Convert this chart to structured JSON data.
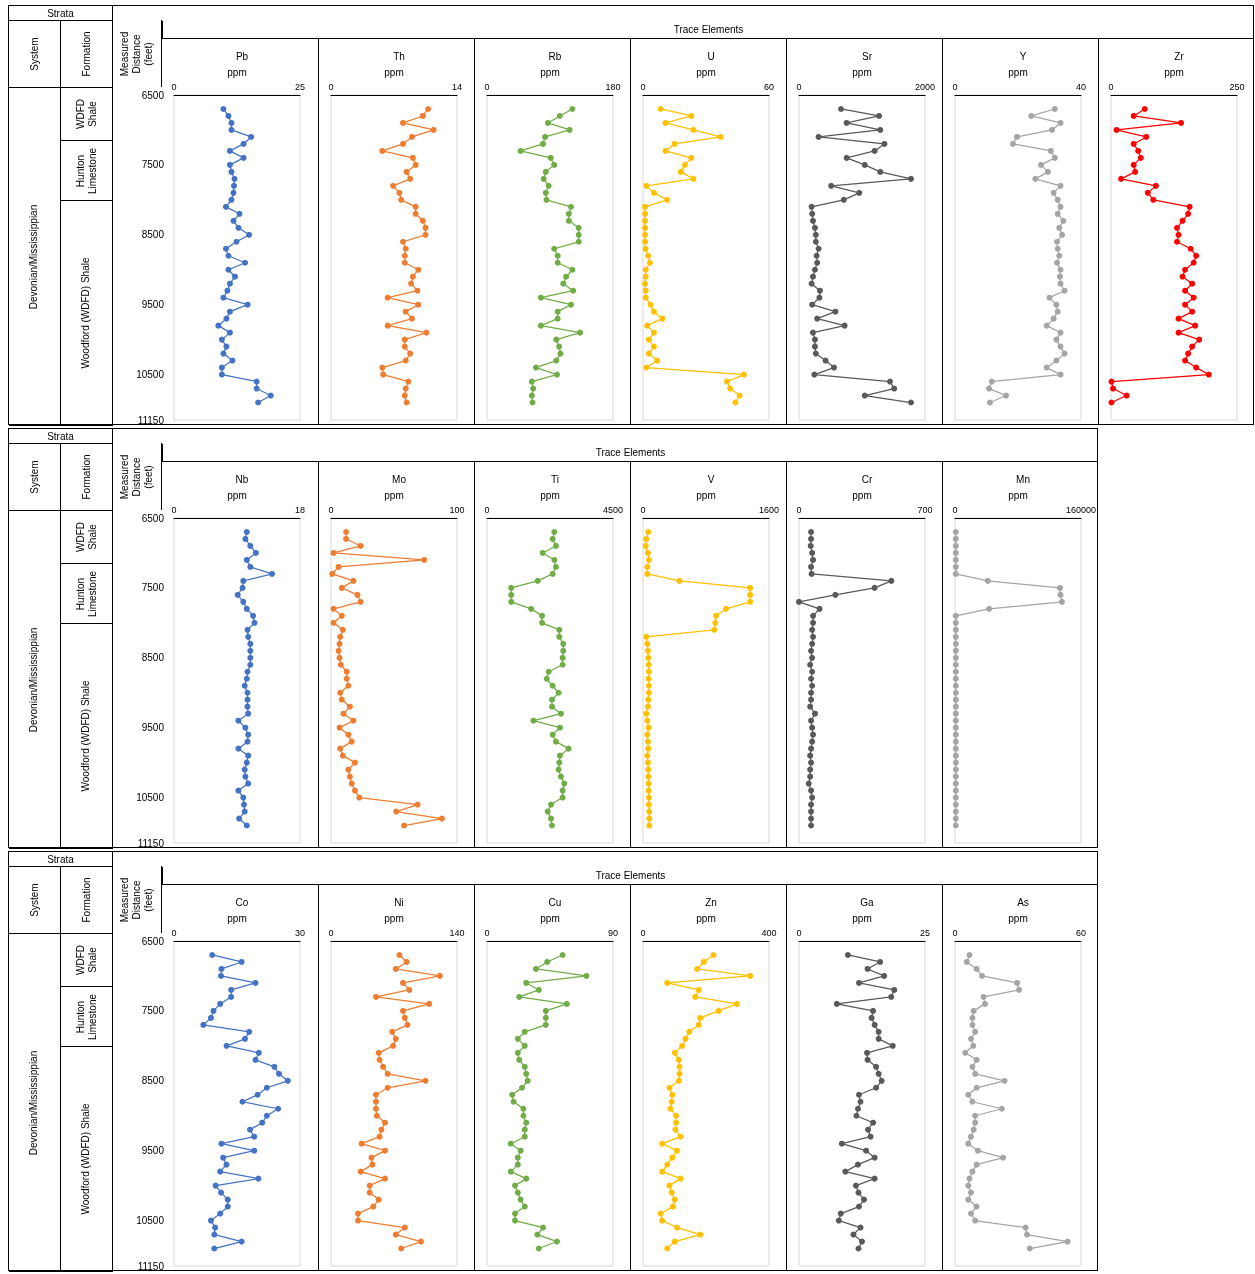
{
  "chart_data": [
    {
      "type": "other",
      "title": "Strata",
      "annotations": [
        "System",
        "Formation",
        "Devonian/Mississippian",
        "WDFD Shale",
        "Hunton Limestone",
        "Woodford (WDFD) Shale",
        "Trace Elements"
      ]
    },
    {
      "type": "line",
      "title": "Pb",
      "xlabel": "ppm",
      "ylabel": "Measured Distance (feet)",
      "color": "#4472c4",
      "marker": "circle",
      "line_style": "solid",
      "xlim": [
        0,
        25
      ],
      "xticks": [
        0,
        25
      ],
      "ylim": [
        11150,
        6500
      ],
      "yticks": [
        6500,
        7500,
        8500,
        9500,
        10500,
        11150
      ],
      "x": [
        9.8,
        10.8,
        11.4,
        11.4,
        15.3,
        13.8,
        11.1,
        13.8,
        11.1,
        11.4,
        12,
        11.9,
        11.8,
        11.4,
        10.3,
        13,
        11.8,
        12.8,
        14.9,
        12.4,
        10.3,
        10.8,
        14.1,
        10.8,
        12.1,
        11.1,
        10.6,
        9.8,
        14.6,
        11.1,
        10.4,
        8.8,
        11.1,
        9.5,
        10.4,
        9.8,
        11.6,
        9.5,
        9.5,
        16.4,
        16.4,
        19.2,
        16.7
      ],
      "values": [
        6700,
        6800,
        6900,
        7000,
        7100,
        7200,
        7300,
        7400,
        7500,
        7600,
        7700,
        7800,
        7900,
        8000,
        8100,
        8200,
        8300,
        8400,
        8500,
        8600,
        8700,
        8800,
        8900,
        9000,
        9100,
        9200,
        9300,
        9400,
        9500,
        9600,
        9700,
        9800,
        9900,
        10000,
        10100,
        10200,
        10300,
        10400,
        10500,
        10600,
        10700,
        10800,
        10900
      ]
    },
    {
      "type": "line",
      "title": "Th",
      "xlabel": "ppm",
      "tick_labels": "x",
      "color": "#ed7d31",
      "marker": "circle",
      "line_style": "solid",
      "xlim": [
        0,
        14
      ],
      "xticks": [
        0,
        14
      ],
      "ylim": [
        11150,
        6500
      ],
      "yticks": [
        6500,
        7500,
        8500,
        9500,
        10500,
        11150
      ],
      "x": [
        10.8,
        10.2,
        8.0,
        11.4,
        9.0,
        8.0,
        5.7,
        9.1,
        9.4,
        8.4,
        8.8,
        6.9,
        7.6,
        7.8,
        9.4,
        9.4,
        10.2,
        10.5,
        10.5,
        8.0,
        8.3,
        8.2,
        8.2,
        9.7,
        9.1,
        8.9,
        9.6,
        6.3,
        9.7,
        8.3,
        9.0,
        6.3,
        10.6,
        8.2,
        8.2,
        8.8,
        8.3,
        5.7,
        5.8,
        8.6,
        8.3,
        8.2,
        8.4
      ],
      "values": [
        6700,
        6800,
        6900,
        7000,
        7100,
        7200,
        7300,
        7400,
        7500,
        7600,
        7700,
        7800,
        7900,
        8000,
        8100,
        8200,
        8300,
        8400,
        8500,
        8600,
        8700,
        8800,
        8900,
        9000,
        9100,
        9200,
        9300,
        9400,
        9500,
        9600,
        9700,
        9800,
        9900,
        10000,
        10100,
        10200,
        10300,
        10400,
        10500,
        10600,
        10700,
        10800,
        10900
      ]
    },
    {
      "type": "line",
      "title": "Rb",
      "xlabel": "ppm",
      "tick_labels": "x",
      "color": "#70ad47",
      "marker": "circle",
      "line_style": "solid",
      "xlim": [
        0,
        180
      ],
      "xticks": [
        0,
        180
      ],
      "ylim": [
        11150,
        6500
      ],
      "yticks": [
        6500,
        7500,
        8500,
        9500,
        10500,
        11150
      ],
      "x": [
        122,
        104,
        87,
        118,
        83,
        80,
        48,
        91,
        96,
        84,
        81,
        88,
        84,
        85,
        120,
        117,
        117,
        131,
        131,
        131,
        96,
        101,
        101,
        122,
        113,
        109,
        123,
        77,
        120,
        101,
        101,
        77,
        133,
        99,
        103,
        105,
        99,
        70,
        100,
        64,
        66,
        64,
        65
      ],
      "values": [
        6700,
        6800,
        6900,
        7000,
        7100,
        7200,
        7300,
        7400,
        7500,
        7600,
        7700,
        7800,
        7900,
        8000,
        8100,
        8200,
        8300,
        8400,
        8500,
        8600,
        8700,
        8800,
        8900,
        9000,
        9100,
        9200,
        9300,
        9400,
        9500,
        9600,
        9700,
        9800,
        9900,
        10000,
        10100,
        10200,
        10300,
        10400,
        10500,
        10600,
        10700,
        10800,
        10900
      ]
    },
    {
      "type": "line",
      "title": "U",
      "xlabel": "ppm",
      "tick_labels": "x",
      "color": "#ffc000",
      "marker": "circle",
      "line_style": "solid",
      "xlim": [
        0,
        60
      ],
      "xticks": [
        0,
        60
      ],
      "ylim": [
        11150,
        6500
      ],
      "yticks": [
        6500,
        7500,
        8500,
        9500,
        10500,
        11150
      ],
      "x": [
        8.4,
        23,
        10.7,
        24,
        37,
        15,
        10.7,
        23,
        20,
        18,
        24,
        1.6,
        5.2,
        11.5,
        1,
        1,
        1,
        1,
        1,
        1,
        1.2,
        2.5,
        3.3,
        1.3,
        1.3,
        1,
        1.3,
        1.3,
        3.6,
        5.2,
        9.2,
        2,
        5.2,
        2.8,
        5.2,
        2.8,
        6.8,
        1.6,
        48,
        40,
        41.5,
        46,
        44
      ],
      "values": [
        6700,
        6800,
        6900,
        7000,
        7100,
        7200,
        7300,
        7400,
        7500,
        7600,
        7700,
        7800,
        7900,
        8000,
        8100,
        8200,
        8300,
        8400,
        8500,
        8600,
        8700,
        8800,
        8900,
        9000,
        9100,
        9200,
        9300,
        9400,
        9500,
        9600,
        9700,
        9800,
        9900,
        10000,
        10100,
        10200,
        10300,
        10400,
        10500,
        10600,
        10700,
        10800,
        10900
      ]
    },
    {
      "type": "line",
      "title": "Sr",
      "xlabel": "ppm",
      "tick_labels": "x",
      "color": "#595959",
      "marker": "circle",
      "line_style": "solid",
      "xlim": [
        0,
        2000
      ],
      "xticks": [
        0,
        2000
      ],
      "ylim": [
        11150,
        6500
      ],
      "yticks": [
        6500,
        7500,
        8500,
        9500,
        10500,
        11150
      ],
      "x": [
        667,
        1270,
        756,
        1290,
        311,
        1356,
        1200,
        756,
        1044,
        1290,
        1778,
        511,
        956,
        711,
        200,
        209,
        222,
        253,
        267,
        267,
        311,
        280,
        289,
        253,
        222,
        200,
        333,
        324,
        209,
        578,
        289,
        724,
        222,
        253,
        253,
        267,
        422,
        556,
        244,
        1444,
        1511,
        1044,
        1778
      ],
      "values": [
        6700,
        6800,
        6900,
        7000,
        7100,
        7200,
        7300,
        7400,
        7500,
        7600,
        7700,
        7800,
        7900,
        8000,
        8100,
        8200,
        8300,
        8400,
        8500,
        8600,
        8700,
        8800,
        8900,
        9000,
        9100,
        9200,
        9300,
        9400,
        9500,
        9600,
        9700,
        9800,
        9900,
        10000,
        10100,
        10200,
        10300,
        10400,
        10500,
        10600,
        10700,
        10800,
        10900
      ]
    },
    {
      "type": "line",
      "title": "Y",
      "xlabel": "ppm",
      "tick_labels": "x",
      "color": "#a5a5a5",
      "marker": "circle",
      "line_style": "solid",
      "xlim": [
        0,
        40
      ],
      "xticks": [
        0,
        40
      ],
      "ylim": [
        11150,
        6500
      ],
      "yticks": [
        6500,
        7500,
        8500,
        9500,
        10500,
        11150
      ],
      "x": [
        31.7,
        24.2,
        33.5,
        30.8,
        19.7,
        18.4,
        30.4,
        31.7,
        27.3,
        29.5,
        25.5,
        33.5,
        31.3,
        32.6,
        33.5,
        32.6,
        34.4,
        33.1,
        34,
        32.4,
        32.6,
        33.1,
        32.4,
        33.5,
        33.3,
        33.5,
        34.8,
        30,
        32.2,
        32.6,
        31.3,
        29.1,
        33.5,
        32.2,
        33.5,
        34.8,
        32.2,
        29.1,
        33.5,
        11.7,
        10.8,
        16.2,
        11.1
      ],
      "values": [
        6700,
        6800,
        6900,
        7000,
        7100,
        7200,
        7300,
        7400,
        7500,
        7600,
        7700,
        7800,
        7900,
        8000,
        8100,
        8200,
        8300,
        8400,
        8500,
        8600,
        8700,
        8800,
        8900,
        9000,
        9100,
        9200,
        9300,
        9400,
        9500,
        9600,
        9700,
        9800,
        9900,
        10000,
        10100,
        10200,
        10300,
        10400,
        10500,
        10600,
        10700,
        10800,
        10900
      ]
    },
    {
      "type": "line",
      "title": "Zr",
      "xlabel": "ppm",
      "tick_labels": "x",
      "color": "#ff0000",
      "marker": "circle",
      "line_style": "solid",
      "xlim": [
        0,
        250
      ],
      "xticks": [
        0,
        250
      ],
      "ylim": [
        11150,
        6500
      ],
      "yticks": [
        6500,
        7500,
        8500,
        9500,
        10500,
        11150
      ],
      "x": [
        67,
        45,
        139,
        11,
        70,
        45,
        54,
        59,
        45,
        48,
        20,
        89,
        73,
        84,
        156,
        153,
        142,
        131,
        134,
        131,
        158,
        169,
        164,
        147,
        142,
        161,
        147,
        164,
        147,
        161,
        134,
        167,
        134,
        175,
        161,
        153,
        147,
        169,
        194,
        1,
        4,
        31,
        1
      ],
      "values": [
        6700,
        6800,
        6900,
        7000,
        7100,
        7200,
        7300,
        7400,
        7500,
        7600,
        7700,
        7800,
        7900,
        8000,
        8100,
        8200,
        8300,
        8400,
        8500,
        8600,
        8700,
        8800,
        8900,
        9000,
        9100,
        9200,
        9300,
        9400,
        9500,
        9600,
        9700,
        9800,
        9900,
        10000,
        10100,
        10200,
        10300,
        10400,
        10500,
        10600,
        10700,
        10800,
        10900
      ]
    },
    {
      "type": "other",
      "title": "Strata",
      "annotations": [
        "System",
        "Formation",
        "Devonian/Mississippian",
        "WDFD Shale",
        "Hunton Limestone",
        "Woodford (WDFD) Shale",
        "Trace Elements"
      ]
    },
    {
      "type": "line",
      "title": "Nb",
      "xlabel": "ppm",
      "ylabel": "Measured Distance (feet)",
      "color": "#4472c4",
      "marker": "circle",
      "line_style": "solid",
      "xlim": [
        0,
        18
      ],
      "xticks": [
        0,
        18
      ],
      "ylim": [
        11150,
        6500
      ],
      "yticks": [
        6500,
        7500,
        8500,
        9500,
        10500,
        11150
      ],
      "x": [
        10.4,
        10.2,
        10.9,
        11.7,
        10.4,
        10.9,
        14,
        9.9,
        9.8,
        9.1,
        9.9,
        10.4,
        11.3,
        11.5,
        10.5,
        10.6,
        10.9,
        10.9,
        10.9,
        10.9,
        10.5,
        10.4,
        10.1,
        10.5,
        10.5,
        10.5,
        10.6,
        9.2,
        10.2,
        10.6,
        10.5,
        9.2,
        10.6,
        10.4,
        10.1,
        10.2,
        10.6,
        9.2,
        9.9,
        10,
        10.1,
        9.3,
        10.4
      ],
      "values": [
        6700,
        6800,
        6900,
        7000,
        7100,
        7200,
        7300,
        7400,
        7500,
        7600,
        7700,
        7800,
        7900,
        8000,
        8100,
        8200,
        8300,
        8400,
        8500,
        8600,
        8700,
        8800,
        8900,
        9000,
        9100,
        9200,
        9300,
        9400,
        9500,
        9600,
        9700,
        9800,
        9900,
        10000,
        10100,
        10200,
        10300,
        10400,
        10500,
        10600,
        10700,
        10800,
        10900
      ]
    },
    {
      "type": "line",
      "title": "Mo",
      "xlabel": "ppm",
      "tick_labels": "x",
      "color": "#ed7d31",
      "marker": "circle",
      "line_style": "solid",
      "xlim": [
        0,
        100
      ],
      "xticks": [
        0,
        100
      ],
      "ylim": [
        11150,
        6500
      ],
      "yticks": [
        6500,
        7500,
        8500,
        9500,
        10500,
        11150
      ],
      "x": [
        12,
        12,
        23.5,
        2,
        74,
        6,
        1,
        17.8,
        8.6,
        21,
        23.5,
        2,
        8.6,
        2,
        9.4,
        7.3,
        6.8,
        6,
        6.8,
        7.8,
        12.5,
        12.5,
        13.8,
        7.3,
        8.6,
        15,
        9.9,
        17.8,
        6.8,
        13.8,
        16.4,
        7.3,
        9.4,
        19,
        13.8,
        15,
        16.4,
        19,
        22.5,
        68.7,
        51.7,
        88,
        58
      ],
      "values": [
        6700,
        6800,
        6900,
        7000,
        7100,
        7200,
        7300,
        7400,
        7500,
        7600,
        7700,
        7800,
        7900,
        8000,
        8100,
        8200,
        8300,
        8400,
        8500,
        8600,
        8700,
        8800,
        8900,
        9000,
        9100,
        9200,
        9300,
        9400,
        9500,
        9600,
        9700,
        9800,
        9900,
        10000,
        10100,
        10200,
        10300,
        10400,
        10500,
        10600,
        10700,
        10800,
        10900
      ]
    },
    {
      "type": "line",
      "title": "Ti",
      "xlabel": "ppm",
      "tick_labels": "x",
      "color": "#70ad47",
      "marker": "circle",
      "line_style": "solid",
      "xlim": [
        0,
        4500
      ],
      "xticks": [
        0,
        4500
      ],
      "ylim": [
        11150,
        6500
      ],
      "yticks": [
        6500,
        7500,
        8500,
        9500,
        10500,
        11150
      ],
      "x": [
        2404,
        2345,
        2463,
        1989,
        2404,
        2463,
        2345,
        1812,
        864,
        864,
        864,
        1575,
        1966,
        1966,
        2582,
        2582,
        2724,
        2724,
        2700,
        2700,
        2203,
        2132,
        2345,
        2558,
        2321,
        2321,
        2641,
        1658,
        2605,
        2345,
        2463,
        2913,
        2605,
        2582,
        2558,
        2641,
        2759,
        2700,
        2700,
        2286,
        2167,
        2286,
        2321
      ],
      "values": [
        6700,
        6800,
        6900,
        7000,
        7100,
        7200,
        7300,
        7400,
        7500,
        7600,
        7700,
        7800,
        7900,
        8000,
        8100,
        8200,
        8300,
        8400,
        8500,
        8600,
        8700,
        8800,
        8900,
        9000,
        9100,
        9200,
        9300,
        9400,
        9500,
        9600,
        9700,
        9800,
        9900,
        10000,
        10100,
        10200,
        10300,
        10400,
        10500,
        10600,
        10700,
        10800,
        10900
      ]
    },
    {
      "type": "line",
      "title": "V",
      "xlabel": "ppm",
      "tick_labels": "x",
      "color": "#ffc000",
      "marker": "circle",
      "line_style": "solid",
      "xlim": [
        0,
        1600
      ],
      "xticks": [
        0,
        1600
      ],
      "ylim": [
        11150,
        6500
      ],
      "yticks": [
        6500,
        7500,
        8500,
        9500,
        10500,
        11150
      ],
      "x": [
        67,
        42,
        34,
        63,
        76,
        55,
        55,
        463,
        1360,
        1360,
        1360,
        1053,
        926,
        918,
        905,
        42,
        55,
        63,
        67,
        72,
        76,
        72,
        76,
        76,
        67,
        63,
        42,
        55,
        72,
        55,
        63,
        67,
        55,
        63,
        67,
        67,
        72,
        72,
        76,
        76,
        80,
        80,
        80
      ],
      "values": [
        6700,
        6800,
        6900,
        7000,
        7100,
        7200,
        7300,
        7400,
        7500,
        7600,
        7700,
        7800,
        7900,
        8000,
        8100,
        8200,
        8300,
        8400,
        8500,
        8600,
        8700,
        8800,
        8900,
        9000,
        9100,
        9200,
        9300,
        9400,
        9500,
        9600,
        9700,
        9800,
        9900,
        10000,
        10100,
        10200,
        10300,
        10400,
        10500,
        10600,
        10700,
        10800,
        10900
      ]
    },
    {
      "type": "line",
      "title": "Cr",
      "xlabel": "ppm",
      "tick_labels": "x",
      "color": "#595959",
      "marker": "circle",
      "line_style": "solid",
      "xlim": [
        0,
        700
      ],
      "xticks": [
        0,
        700
      ],
      "ylim": [
        11150,
        6500
      ],
      "yticks": [
        6500,
        7500,
        8500,
        9500,
        10500,
        11150
      ],
      "x": [
        67,
        67,
        65,
        73,
        78,
        67,
        70,
        513,
        420,
        202,
        0,
        114,
        78,
        78,
        73,
        78,
        73,
        67,
        73,
        62,
        73,
        67,
        73,
        67,
        67,
        62,
        89,
        67,
        73,
        78,
        73,
        67,
        62,
        67,
        62,
        62,
        54,
        67,
        73,
        67,
        67,
        67,
        67
      ],
      "values": [
        6700,
        6800,
        6900,
        7000,
        7100,
        7200,
        7300,
        7400,
        7500,
        7600,
        7700,
        7800,
        7900,
        8000,
        8100,
        8200,
        8300,
        8400,
        8500,
        8600,
        8700,
        8800,
        8900,
        9000,
        9100,
        9200,
        9300,
        9400,
        9500,
        9600,
        9700,
        9800,
        9900,
        10000,
        10100,
        10200,
        10300,
        10400,
        10500,
        10600,
        10700,
        10800,
        10900
      ]
    },
    {
      "type": "line",
      "title": "Mn",
      "xlabel": "ppm",
      "tick_labels": "x",
      "color": "#a5a5a5",
      "marker": "circle",
      "line_style": "solid",
      "xlim": [
        0,
        160000
      ],
      "xticks": [
        0,
        160000
      ],
      "ylim": [
        11150,
        6500
      ],
      "yticks": [
        6500,
        7500,
        8500,
        9500,
        10500,
        11150
      ],
      "x": [
        1000,
        1000,
        1000,
        1000,
        1000,
        1000,
        1000,
        41600,
        133300,
        134000,
        135800,
        43400,
        1000,
        1000,
        1000,
        1000,
        1000,
        1000,
        1000,
        1000,
        1000,
        1000,
        1000,
        1000,
        1000,
        1000,
        1000,
        1000,
        1000,
        1000,
        1000,
        1000,
        1000,
        1000,
        1000,
        1000,
        1000,
        1000,
        1000,
        1000,
        1000,
        1000,
        1000
      ],
      "values": [
        6700,
        6800,
        6900,
        7000,
        7100,
        7200,
        7300,
        7400,
        7500,
        7600,
        7700,
        7800,
        7900,
        8000,
        8100,
        8200,
        8300,
        8400,
        8500,
        8600,
        8700,
        8800,
        8900,
        9000,
        9100,
        9200,
        9300,
        9400,
        9500,
        9600,
        9700,
        9800,
        9900,
        10000,
        10100,
        10200,
        10300,
        10400,
        10500,
        10600,
        10700,
        10800,
        10900
      ]
    },
    {
      "type": "other",
      "title": "Strata",
      "annotations": [
        "System",
        "Formation",
        "Devonian/Mississippian",
        "WDFD Shale",
        "Hunton Limestone",
        "Woodford (WDFD) Shale",
        "Trace Elements"
      ]
    },
    {
      "type": "line",
      "title": "Co",
      "xlabel": "ppm",
      "ylabel": "Measured Distance (feet)",
      "color": "#4472c4",
      "marker": "circle",
      "line_style": "solid",
      "xlim": [
        0,
        30
      ],
      "xticks": [
        0,
        30
      ],
      "ylim": [
        11150,
        6500
      ],
      "yticks": [
        6500,
        7500,
        8500,
        9500,
        10500,
        11150
      ],
      "x": [
        9.1,
        16.1,
        11.3,
        11.2,
        19.4,
        13.6,
        13.6,
        11,
        9.4,
        8.8,
        7,
        17.9,
        16.9,
        12.5,
        20.2,
        19.4,
        23.9,
        25,
        27.1,
        22.1,
        19.9,
        16.3,
        24.8,
        22.1,
        21,
        18.1,
        19.1,
        11.3,
        19.1,
        11.7,
        12.5,
        11,
        20.1,
        9.9,
        11.2,
        12.8,
        12.8,
        11,
        8.8,
        9.8,
        9.6,
        16.1,
        9.6
      ],
      "values": [
        6700,
        6800,
        6900,
        7000,
        7100,
        7200,
        7300,
        7400,
        7500,
        7600,
        7700,
        7800,
        7900,
        8000,
        8100,
        8200,
        8300,
        8400,
        8500,
        8600,
        8700,
        8800,
        8900,
        9000,
        9100,
        9200,
        9300,
        9400,
        9500,
        9600,
        9700,
        9800,
        9900,
        10000,
        10100,
        10200,
        10300,
        10400,
        10500,
        10600,
        10700,
        10800,
        10900
      ]
    },
    {
      "type": "line",
      "title": "Ni",
      "xlabel": "ppm",
      "tick_labels": "x",
      "color": "#ed7d31",
      "marker": "circle",
      "line_style": "solid",
      "xlim": [
        0,
        140
      ],
      "xticks": [
        0,
        140
      ],
      "ylim": [
        11150,
        6500
      ],
      "yticks": [
        6500,
        7500,
        8500,
        9500,
        10500,
        11150
      ],
      "x": [
        76,
        84,
        72,
        121,
        80,
        87,
        50,
        109,
        80,
        82,
        85,
        68,
        72,
        69,
        53,
        54,
        58,
        63,
        105,
        63,
        50,
        50,
        50,
        51,
        60,
        56,
        54,
        34,
        60,
        45,
        46,
        33,
        60,
        43,
        43,
        53,
        47,
        30,
        30,
        82,
        72,
        100,
        78
      ],
      "values": [
        6700,
        6800,
        6900,
        7000,
        7100,
        7200,
        7300,
        7400,
        7500,
        7600,
        7700,
        7800,
        7900,
        8000,
        8100,
        8200,
        8300,
        8400,
        8500,
        8600,
        8700,
        8800,
        8900,
        9000,
        9100,
        9200,
        9300,
        9400,
        9500,
        9600,
        9700,
        9800,
        9900,
        10000,
        10100,
        10200,
        10300,
        10400,
        10500,
        10600,
        10700,
        10800,
        10900
      ]
    },
    {
      "type": "line",
      "title": "Cu",
      "xlabel": "ppm",
      "tick_labels": "x",
      "color": "#70ad47",
      "marker": "circle",
      "line_style": "solid",
      "xlim": [
        0,
        90
      ],
      "xticks": [
        0,
        90
      ],
      "ylim": [
        11150,
        6500
      ],
      "yticks": [
        6500,
        7500,
        8500,
        9500,
        10500,
        11150
      ],
      "x": [
        54,
        43,
        35,
        71,
        28,
        37,
        23,
        57,
        42,
        42,
        42,
        27,
        22,
        27,
        22,
        23,
        27,
        28,
        29,
        25,
        18,
        19,
        26,
        26,
        28,
        27,
        27,
        17,
        24,
        22,
        22,
        17,
        28,
        20,
        22,
        24,
        27,
        20,
        20,
        40,
        36,
        50,
        37
      ],
      "values": [
        6700,
        6800,
        6900,
        7000,
        7100,
        7200,
        7300,
        7400,
        7500,
        7600,
        7700,
        7800,
        7900,
        8000,
        8100,
        8200,
        8300,
        8400,
        8500,
        8600,
        8700,
        8800,
        8900,
        9000,
        9100,
        9200,
        9300,
        9400,
        9500,
        9600,
        9700,
        9800,
        9900,
        10000,
        10100,
        10200,
        10300,
        10400,
        10500,
        10600,
        10700,
        10800,
        10900
      ]
    },
    {
      "type": "line",
      "title": "Zn",
      "xlabel": "ppm",
      "tick_labels": "x",
      "color": "#ffc000",
      "marker": "circle",
      "line_style": "solid",
      "xlim": [
        0,
        400
      ],
      "xticks": [
        0,
        400
      ],
      "ylim": [
        11150,
        6500
      ],
      "yticks": [
        6500,
        7500,
        8500,
        9500,
        10500,
        11150
      ],
      "x": [
        224,
        193,
        172,
        340,
        77,
        177,
        166,
        298,
        240,
        182,
        177,
        147,
        135,
        124,
        101,
        114,
        116,
        116,
        114,
        84,
        93,
        91,
        87,
        105,
        105,
        103,
        119,
        61,
        108,
        93,
        77,
        61,
        119,
        84,
        91,
        101,
        95,
        56,
        61,
        108,
        182,
        101,
        77
      ],
      "values": [
        6700,
        6800,
        6900,
        7000,
        7100,
        7200,
        7300,
        7400,
        7500,
        7600,
        7700,
        7800,
        7900,
        8000,
        8100,
        8200,
        8300,
        8400,
        8500,
        8600,
        8700,
        8800,
        8900,
        9000,
        9100,
        9200,
        9300,
        9400,
        9500,
        9600,
        9700,
        9800,
        9900,
        10000,
        10100,
        10200,
        10300,
        10400,
        10500,
        10600,
        10700,
        10800,
        10900
      ]
    },
    {
      "type": "line",
      "title": "Ga",
      "xlabel": "ppm",
      "tick_labels": "x",
      "color": "#595959",
      "marker": "circle",
      "line_style": "solid",
      "xlim": [
        0,
        25
      ],
      "xticks": [
        0,
        25
      ],
      "ylim": [
        11150,
        6500
      ],
      "yticks": [
        6500,
        7500,
        8500,
        9500,
        10500,
        11150
      ],
      "x": [
        9.7,
        16.1,
        13.6,
        16.9,
        11.9,
        18.9,
        18.3,
        7.5,
        14.7,
        14.4,
        15,
        15.8,
        15.8,
        18.6,
        13.5,
        13.6,
        15.3,
        15.8,
        16.4,
        15.3,
        11.9,
        12.2,
        11.7,
        11.4,
        14.7,
        13.7,
        14.2,
        8.5,
        13.3,
        15,
        11.7,
        9.2,
        15,
        11.3,
        11.8,
        12.9,
        11.9,
        8.3,
        7.9,
        12.2,
        10.8,
        12.5,
        11.8
      ],
      "values": [
        6700,
        6800,
        6900,
        7000,
        7100,
        7200,
        7300,
        7400,
        7500,
        7600,
        7700,
        7800,
        7900,
        8000,
        8100,
        8200,
        8300,
        8400,
        8500,
        8600,
        8700,
        8800,
        8900,
        9000,
        9100,
        9200,
        9300,
        9400,
        9500,
        9600,
        9700,
        9800,
        9900,
        10000,
        10100,
        10200,
        10300,
        10400,
        10500,
        10600,
        10700,
        10800,
        10900
      ]
    },
    {
      "type": "line",
      "title": "As",
      "xlabel": "ppm",
      "tick_labels": "x",
      "color": "#a5a5a5",
      "marker": "circle",
      "line_style": "solid",
      "xlim": [
        0,
        60
      ],
      "xticks": [
        0,
        60
      ],
      "ylim": [
        11150,
        6500
      ],
      "yticks": [
        6500,
        7500,
        8500,
        9500,
        10500,
        11150
      ],
      "x": [
        6.9,
        5.6,
        10.3,
        12.9,
        29.6,
        30.5,
        13.6,
        14.3,
        8.9,
        8.3,
        8.3,
        9.6,
        7.6,
        8.7,
        4.9,
        10.3,
        8.3,
        9.6,
        23.6,
        10.3,
        6.3,
        8.3,
        22.3,
        9.6,
        9.6,
        8.9,
        7.6,
        6.3,
        10.9,
        22.9,
        10.3,
        8.3,
        6.9,
        6.3,
        7.6,
        6.3,
        10.3,
        7.6,
        9.6,
        33.6,
        34.3,
        53.6,
        35.6
      ],
      "values": [
        6700,
        6800,
        6900,
        7000,
        7100,
        7200,
        7300,
        7400,
        7500,
        7600,
        7700,
        7800,
        7900,
        8000,
        8100,
        8200,
        8300,
        8400,
        8500,
        8600,
        8700,
        8800,
        8900,
        9000,
        9100,
        9200,
        9300,
        9400,
        9500,
        9600,
        9700,
        9800,
        9900,
        10000,
        10100,
        10200,
        10300,
        10400,
        10500,
        10600,
        10700,
        10800,
        10900
      ]
    }
  ]
}
